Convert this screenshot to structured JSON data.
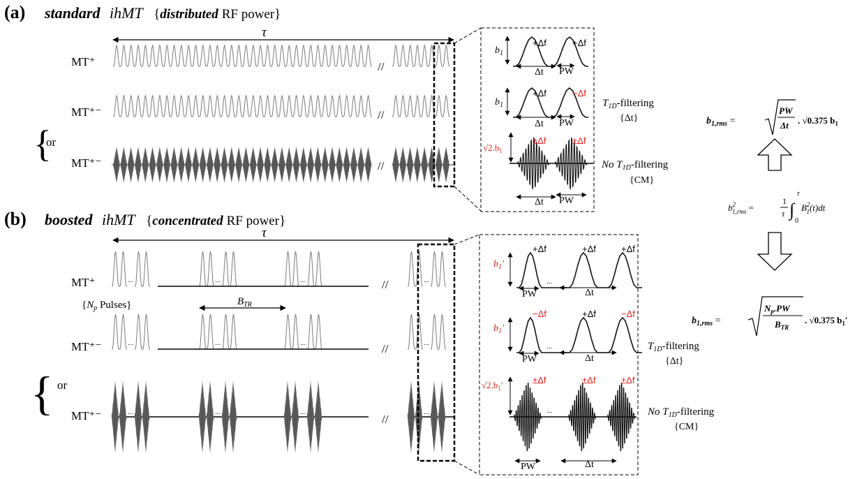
{
  "panel_a": {
    "letter": "(a)",
    "title_bold_italic": "standard",
    "title_italic": "ihMT",
    "brace_open": "{",
    "brace_bold_italic": "distributed",
    "brace_rest": "RF power}",
    "tau": "τ",
    "rows": [
      "MT⁺",
      "MT⁺⁻",
      "MT⁺⁻"
    ],
    "or": "or",
    "break": "//",
    "inset": {
      "b1": "b",
      "b1_sub": "1",
      "sqrt2b1": "√2.b",
      "plus_df": "+Δf",
      "minus_df": "−Δf",
      "pm_df": "±Δf",
      "dt": "Δt",
      "pw": "PW"
    },
    "filter1_T": "T",
    "filter1_sub": "1D",
    "filter1_rest": "-filtering",
    "filter1_sub2": "{Δt}",
    "filter2_no": "No ",
    "filter2_T": "T",
    "filter2_sub": "1D",
    "filter2_rest": "-filtering",
    "filter2_sub2": "{CM}"
  },
  "panel_b": {
    "letter": "(b)",
    "title_bold_italic": "boosted",
    "title_italic": "ihMT",
    "brace_open": "{",
    "brace_bold_italic": "concentrated",
    "brace_rest": "RF power}",
    "tau": "τ",
    "rows": [
      "MT⁺",
      "MT⁺⁻",
      "MT⁺⁻"
    ],
    "or": "or",
    "break": "//",
    "ellipsis": "...",
    "np_label_open": "{",
    "np_label_N": "N",
    "np_label_sub": "p",
    "np_label_rest": " Pulses}",
    "btr_B": "B",
    "btr_sub": "TR",
    "inset": {
      "b1p": "b",
      "b1p_sub": "1",
      "prime": "'",
      "sqrt2b1p": "√2.b",
      "plus_df": "+Δf",
      "minus_df": "−Δf",
      "pm_df": "±Δf",
      "dt": "Δt",
      "pw": "PW"
    },
    "filter1_T": "T",
    "filter1_sub": "1D",
    "filter1_rest": "-filtering",
    "filter1_sub2": "{Δt}",
    "filter2_no": "No ",
    "filter2_T": "T",
    "filter2_sub": "1D",
    "filter2_rest": "-filtering",
    "filter2_sub2": "{CM}"
  },
  "equations": {
    "top_lhs": "b",
    "top_lhs_sub": "1,rms",
    "top_eq": " = ",
    "top_num": "PW",
    "top_den": "Δt",
    "top_tail": ". √0.375 b",
    "top_tail_sub": "1",
    "mid_lhs": "b",
    "mid_sup": "2",
    "mid_sub": "1,rms",
    "mid_eq": " = ",
    "mid_frac_num": "1",
    "mid_frac_den": "τ",
    "mid_int_top": "τ",
    "mid_int_bot": "0",
    "mid_rhs": "B",
    "mid_rhs_sup": "2",
    "mid_rhs_sub": "1",
    "mid_rhs_rest": "(t)dt",
    "bot_lhs": "b",
    "bot_lhs_sub": "1,rms",
    "bot_eq": " = ",
    "bot_num_N": "N",
    "bot_num_sub": "p",
    "bot_num_rest": ".PW",
    "bot_den_B": "B",
    "bot_den_sub": "TR",
    "bot_tail": ". √0.375 b",
    "bot_tail_sub": "1",
    "bot_tail_prime": "′"
  },
  "colors": {
    "accent_red": "#e8201c",
    "waveform_gray": "#7a7a7a",
    "waveform_dark": "#111111"
  }
}
